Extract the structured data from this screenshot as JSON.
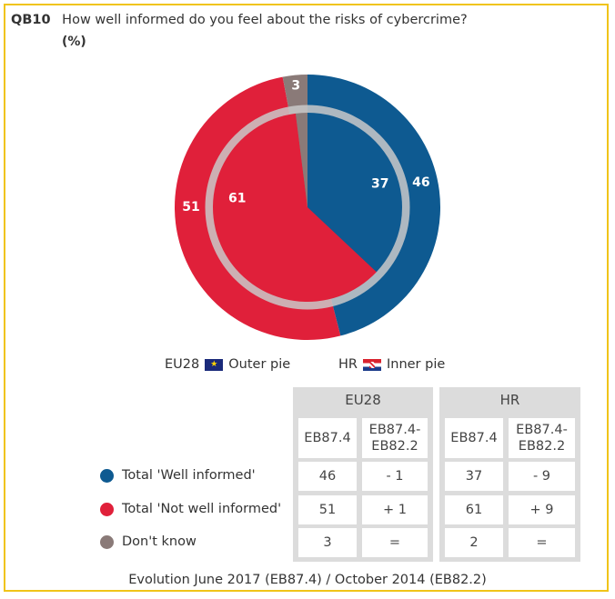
{
  "question": {
    "code": "QB10",
    "text": "How well informed do you feel about the risks of cybercrime?",
    "unit": "(%)"
  },
  "chart_data": {
    "type": "pie",
    "title": "How well informed do you feel about the risks of cybercrime?",
    "categories": [
      "Total 'Well informed'",
      "Total 'Not well informed'",
      "Don't know"
    ],
    "colors": [
      "#0e5a91",
      "#e0203a",
      "#8a7a78"
    ],
    "series": [
      {
        "name": "EU28",
        "ring": "outer",
        "values": [
          46,
          51,
          3
        ]
      },
      {
        "name": "HR",
        "ring": "inner",
        "values": [
          37,
          61,
          2
        ]
      }
    ]
  },
  "pie_labels": {
    "outer": [
      "46",
      "51",
      "3"
    ],
    "inner": [
      "37",
      "61",
      ""
    ]
  },
  "legend": {
    "eu_code": "EU28",
    "eu_text": "Outer pie",
    "hr_code": "HR",
    "hr_text": "Inner pie"
  },
  "table": {
    "groups": [
      "EU28",
      "HR"
    ],
    "subheaders": [
      "EB87.4",
      "EB87.4-\nEB82.2",
      "EB87.4",
      "EB87.4-\nEB82.2"
    ],
    "rows": [
      {
        "label": "Total 'Well informed'",
        "color": "#0e5a91",
        "values": [
          "46",
          "- 1",
          "37",
          "- 9"
        ]
      },
      {
        "label": "Total 'Not well informed'",
        "color": "#e0203a",
        "values": [
          "51",
          "+ 1",
          "61",
          "+ 9"
        ]
      },
      {
        "label": "Don't know",
        "color": "#8a7a78",
        "values": [
          "3",
          "=",
          "2",
          "="
        ]
      }
    ]
  },
  "footer": "Evolution June 2017 (EB87.4) / October 2014 (EB82.2)"
}
